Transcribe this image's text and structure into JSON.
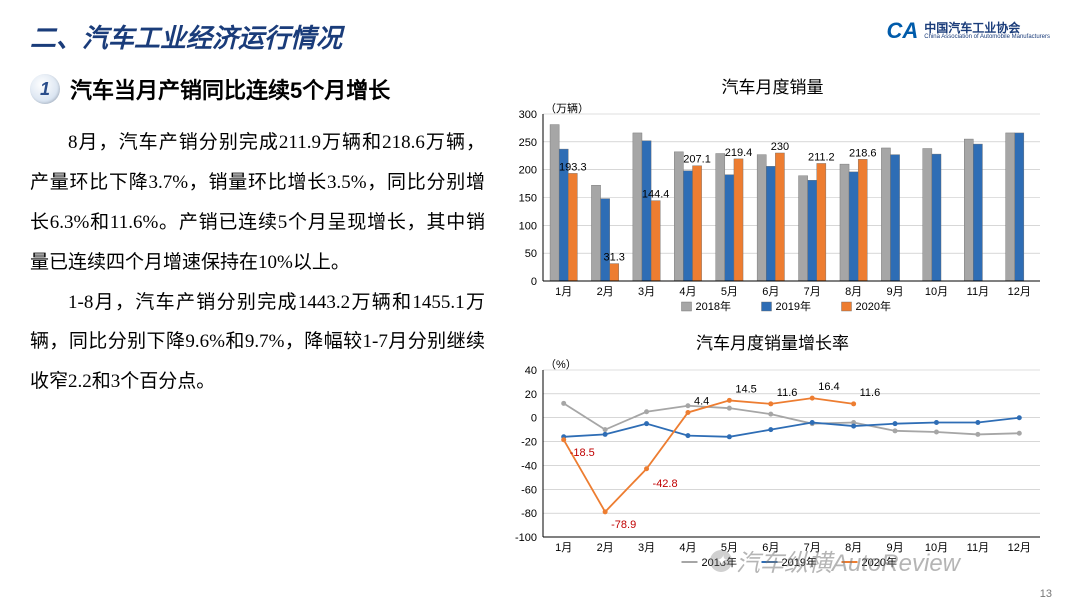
{
  "header": {
    "section_title": "二、汽车工业经济运行情况",
    "logo_cn": "中国汽车工业协会",
    "logo_en": "China Association of Automobile Manufacturers",
    "logo_mark": "CA"
  },
  "left": {
    "badge_num": "1",
    "subhead": "汽车当月产销同比连续5个月增长",
    "para1": "8月，汽车产销分别完成211.9万辆和218.6万辆，产量环比下降3.7%，销量环比增长3.5%，同比分别增长6.3%和11.6%。产销已连续5个月呈现增长，其中销量已连续四个月增速保持在10%以上。",
    "para2": "1-8月，汽车产销分别完成1443.2万辆和1455.1万辆，同比分别下降9.6%和9.7%，降幅较1-7月分别继续收窄2.2和3个百分点。"
  },
  "bar_chart": {
    "title": "汽车月度销量",
    "y_unit": "（万辆）",
    "categories": [
      "1月",
      "2月",
      "3月",
      "4月",
      "5月",
      "6月",
      "7月",
      "8月",
      "9月",
      "10月",
      "11月",
      "12月"
    ],
    "series": [
      {
        "name": "2018年",
        "color": "#a6a6a6",
        "values": [
          281,
          172,
          266,
          232,
          229,
          227,
          189,
          210,
          239,
          238,
          255,
          266
        ]
      },
      {
        "name": "2019年",
        "color": "#2e6db5",
        "values": [
          237,
          148,
          252,
          198,
          191,
          206,
          181,
          196,
          227,
          228,
          246,
          266
        ]
      },
      {
        "name": "2020年",
        "color": "#ed7d31",
        "values": [
          193.3,
          31.3,
          144.4,
          207.1,
          219.4,
          230,
          211.2,
          218.6,
          null,
          null,
          null,
          null
        ]
      }
    ],
    "data_labels_2020": [
      "193.3",
      "31.3",
      "144.4",
      "207.1",
      "219.4",
      "230",
      "211.2",
      "218.6"
    ],
    "ylim": [
      0,
      300
    ],
    "ytick_step": 50,
    "colors": {
      "grid": "#bfbfbf",
      "axis": "#000"
    }
  },
  "line_chart": {
    "title": "汽车月度销量增长率",
    "y_unit": "（%）",
    "categories": [
      "1月",
      "2月",
      "3月",
      "4月",
      "5月",
      "6月",
      "7月",
      "8月",
      "9月",
      "10月",
      "11月",
      "12月"
    ],
    "series": [
      {
        "name": "2018年",
        "color": "#a6a6a6",
        "values": [
          12,
          -10,
          5,
          10,
          8,
          3,
          -5,
          -4,
          -11,
          -12,
          -14,
          -13
        ]
      },
      {
        "name": "2019年",
        "color": "#2e6db5",
        "values": [
          -16,
          -14,
          -5,
          -15,
          -16,
          -10,
          -4,
          -7,
          -5,
          -4,
          -4,
          0
        ]
      },
      {
        "name": "2020年",
        "color": "#ed7d31",
        "values": [
          -18.5,
          -78.9,
          -42.8,
          4.4,
          14.5,
          11.6,
          16.4,
          11.6,
          null,
          null,
          null,
          null
        ]
      }
    ],
    "data_labels_2020": [
      {
        "x": 0,
        "v": "-18.5",
        "dy": 16,
        "color": "#c00000"
      },
      {
        "x": 1,
        "v": "-78.9",
        "dy": 16,
        "color": "#c00000"
      },
      {
        "x": 2,
        "v": "-42.8",
        "dy": 18,
        "color": "#c00000"
      },
      {
        "x": 3,
        "v": "4.4",
        "dy": -8,
        "color": "#000"
      },
      {
        "x": 4,
        "v": "14.5",
        "dy": -8,
        "color": "#000"
      },
      {
        "x": 5,
        "v": "11.6",
        "dy": -8,
        "color": "#000"
      },
      {
        "x": 6,
        "v": "16.4",
        "dy": -8,
        "color": "#000"
      },
      {
        "x": 7,
        "v": "11.6",
        "dy": -8,
        "color": "#000"
      }
    ],
    "ylim": [
      -100,
      40
    ],
    "yticks": [
      -100,
      -80,
      -60,
      -40,
      -20,
      0,
      20,
      40
    ],
    "colors": {
      "grid": "#bfbfbf",
      "axis": "#000"
    }
  },
  "footer": {
    "page_num": "13",
    "watermark": "汽车纵横AutoReview"
  }
}
